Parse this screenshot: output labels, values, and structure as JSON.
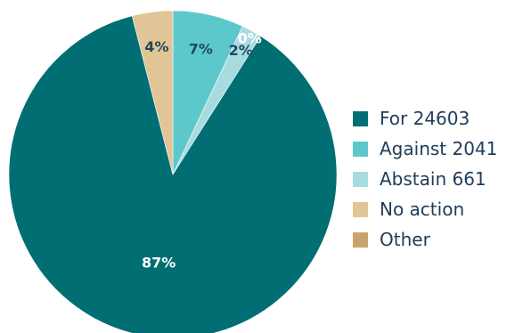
{
  "chart_data": {
    "type": "pie",
    "slices": [
      {
        "label": "For 24603",
        "value": 87,
        "display": "87%",
        "color": "#006e73"
      },
      {
        "label": "Against 2041",
        "value": 7,
        "display": "7%",
        "color": "#5cc8cc"
      },
      {
        "label": "Abstain 661",
        "value": 2,
        "display": "2%",
        "color": "#a8dbe0"
      },
      {
        "label": "No action",
        "value": 4,
        "display": "4%",
        "color": "#e2c596"
      },
      {
        "label": "Other",
        "value": 0,
        "display": "0%",
        "color": "#c9a46a"
      }
    ],
    "legend_position": "right"
  }
}
